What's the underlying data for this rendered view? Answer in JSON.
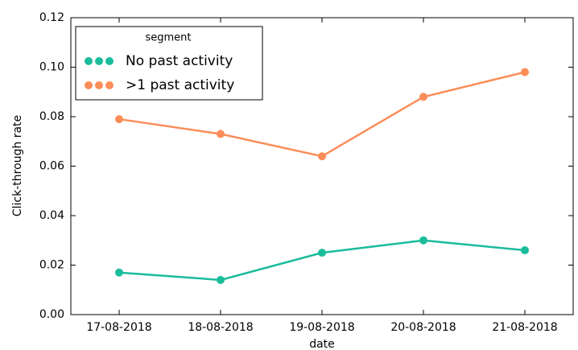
{
  "chart_data": {
    "type": "line",
    "xlabel": "date",
    "ylabel": "Click-through rate",
    "categories": [
      "17-08-2018",
      "18-08-2018",
      "19-08-2018",
      "20-08-2018",
      "21-08-2018"
    ],
    "series": [
      {
        "name": "No past activity",
        "color": "#1abc9c",
        "values": [
          0.017,
          0.014,
          0.025,
          0.03,
          0.026
        ]
      },
      {
        "name": ">1 past activity",
        "color": "#fc8d59",
        "values": [
          0.079,
          0.073,
          0.064,
          0.088,
          0.098
        ]
      }
    ],
    "legend_title": "segment",
    "legend": "upper left",
    "ylim": [
      0,
      0.12
    ],
    "yticks": [
      {
        "value": 0,
        "label": "0.00"
      },
      {
        "value": 0.02,
        "label": "0.02"
      },
      {
        "value": 0.04,
        "label": "0.04"
      },
      {
        "value": 0.06,
        "label": "0.06"
      },
      {
        "value": 0.08,
        "label": "0.08"
      },
      {
        "value": 0.1,
        "label": "0.10"
      },
      {
        "value": 0.12,
        "label": "0.12"
      }
    ],
    "grid": false
  }
}
